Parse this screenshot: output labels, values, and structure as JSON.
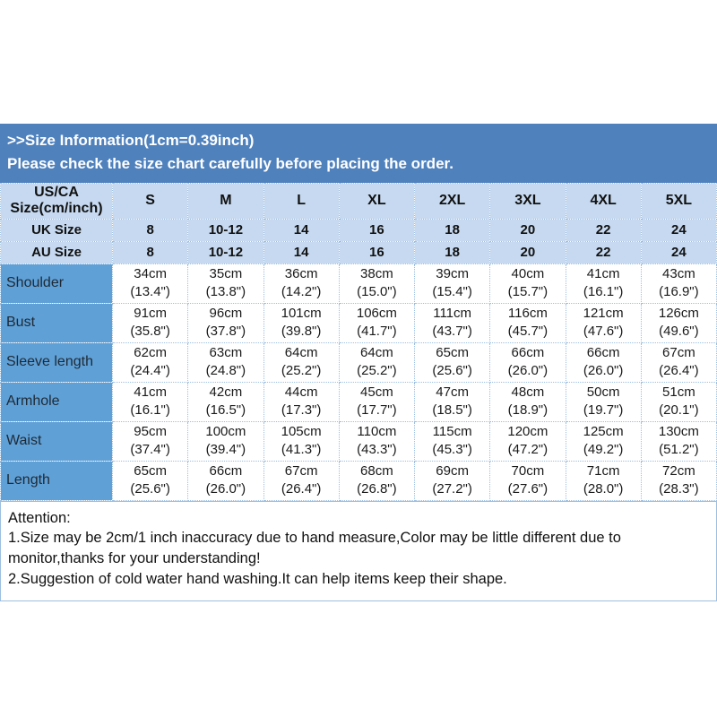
{
  "banner": {
    "line1": ">>Size Information(1cm=0.39inch)",
    "line2": "Please check the size chart carefully before placing the order."
  },
  "table": {
    "header_label_line1": "US/CA",
    "header_label_line2": "Size(cm/inch)",
    "columns": [
      "S",
      "M",
      "L",
      "XL",
      "2XL",
      "3XL",
      "4XL",
      "5XL"
    ],
    "size_rows": [
      {
        "label": "UK Size",
        "values": [
          "8",
          "10-12",
          "14",
          "16",
          "18",
          "20",
          "22",
          "24"
        ]
      },
      {
        "label": "AU Size",
        "values": [
          "8",
          "10-12",
          "14",
          "16",
          "18",
          "20",
          "22",
          "24"
        ]
      }
    ],
    "measure_rows": [
      {
        "label": "Shoulder",
        "cm": [
          "34cm",
          "35cm",
          "36cm",
          "38cm",
          "39cm",
          "40cm",
          "41cm",
          "43cm"
        ],
        "inch": [
          "(13.4\")",
          "(13.8\")",
          "(14.2\")",
          "(15.0\")",
          "(15.4\")",
          "(15.7\")",
          "(16.1\")",
          "(16.9\")"
        ]
      },
      {
        "label": "Bust",
        "cm": [
          "91cm",
          "96cm",
          "101cm",
          "106cm",
          "111cm",
          "116cm",
          "121cm",
          "126cm"
        ],
        "inch": [
          "(35.8\")",
          "(37.8\")",
          "(39.8\")",
          "(41.7\")",
          "(43.7\")",
          "(45.7\")",
          "(47.6\")",
          "(49.6\")"
        ]
      },
      {
        "label": "Sleeve length",
        "cm": [
          "62cm",
          "63cm",
          "64cm",
          "64cm",
          "65cm",
          "66cm",
          "66cm",
          "67cm"
        ],
        "inch": [
          "(24.4\")",
          "(24.8\")",
          "(25.2\")",
          "(25.2\")",
          "(25.6\")",
          "(26.0\")",
          "(26.0\")",
          "(26.4\")"
        ]
      },
      {
        "label": "Armhole",
        "cm": [
          "41cm",
          "42cm",
          "44cm",
          "45cm",
          "47cm",
          "48cm",
          "50cm",
          "51cm"
        ],
        "inch": [
          "(16.1\")",
          "(16.5\")",
          "(17.3\")",
          "(17.7\")",
          "(18.5\")",
          "(18.9\")",
          "(19.7\")",
          "(20.1\")"
        ]
      },
      {
        "label": "Waist",
        "cm": [
          "95cm",
          "100cm",
          "105cm",
          "110cm",
          "115cm",
          "120cm",
          "125cm",
          "130cm"
        ],
        "inch": [
          "(37.4\")",
          "(39.4\")",
          "(41.3\")",
          "(43.3\")",
          "(45.3\")",
          "(47.2\")",
          "(49.2\")",
          "(51.2\")"
        ]
      },
      {
        "label": "Length",
        "cm": [
          "65cm",
          "66cm",
          "67cm",
          "68cm",
          "69cm",
          "70cm",
          "71cm",
          "72cm"
        ],
        "inch": [
          "(25.6\")",
          "(26.0\")",
          "(26.4\")",
          "(26.8\")",
          "(27.2\")",
          "(27.6\")",
          "(28.0\")",
          "(28.3\")"
        ]
      }
    ]
  },
  "attention": {
    "title": "Attention:",
    "notes": [
      "1.Size may be 2cm/1 inch inaccuracy due to hand measure,Color may be little different due to monitor,thanks for your understanding!",
      "2.Suggestion of cold water hand washing.It can help items keep their shape."
    ]
  },
  "colors": {
    "banner_bg": "#4f81bd",
    "light_row_bg": "#c6d9f0",
    "row_label_bg": "#5fa0d6",
    "grid_border": "#9dbfe0"
  }
}
